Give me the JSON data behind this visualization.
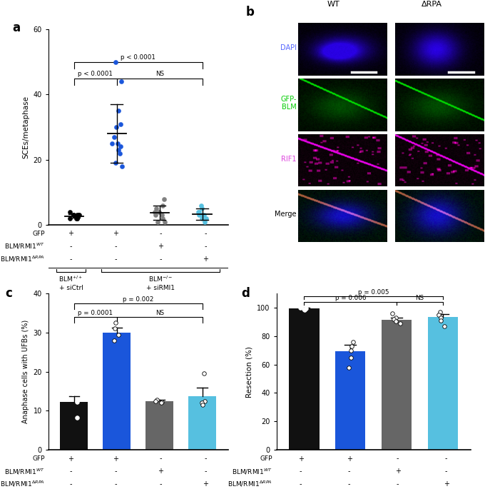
{
  "panel_a": {
    "label": "a",
    "ylabel": "SCEs/metaphase",
    "ylim": [
      0,
      60
    ],
    "yticks": [
      0,
      20,
      40,
      60
    ],
    "colors": [
      "black",
      "#1a56db",
      "#808080",
      "#56c0e0"
    ],
    "data": [
      [
        2,
        3,
        3,
        2,
        2,
        3,
        2,
        3,
        4,
        3
      ],
      [
        50,
        44,
        35,
        31,
        30,
        27,
        25,
        25,
        24,
        23,
        22,
        19,
        18
      ],
      [
        8,
        6,
        5,
        4,
        4,
        3,
        3,
        2,
        1,
        1
      ],
      [
        6,
        5,
        4,
        4,
        3,
        3,
        3,
        2,
        2,
        1
      ]
    ],
    "means": [
      2.7,
      28.0,
      3.8,
      3.3
    ],
    "errors": [
      0.5,
      9.0,
      2.2,
      1.8
    ],
    "table_values": [
      [
        "+",
        "+",
        "-",
        "-"
      ],
      [
        "-",
        "-",
        "+",
        "-"
      ],
      [
        "-",
        "-",
        "-",
        "+"
      ]
    ]
  },
  "panel_b": {
    "label": "b",
    "col_labels": [
      "WT",
      "ΔRPA"
    ],
    "row_labels": [
      "DAPI",
      "GFP-\nBLM",
      "RIF1",
      "Merge"
    ],
    "row_label_colors": [
      "#5566ff",
      "#00cc00",
      "#dd44dd",
      "black"
    ]
  },
  "panel_c": {
    "label": "c",
    "ylabel": "Anaphase cells with UFBs (%)",
    "ylim": [
      0,
      40
    ],
    "yticks": [
      0,
      10,
      20,
      30,
      40
    ],
    "bar_values": [
      12.3,
      30.0,
      12.5,
      13.8
    ],
    "bar_colors": [
      "#111111",
      "#1a56db",
      "#666666",
      "#56c0e0"
    ],
    "data_points": [
      [
        14.5,
        12.3,
        8.2
      ],
      [
        32.5,
        31.0,
        29.5,
        28.0
      ],
      [
        12.8,
        12.5,
        12.2,
        12.0
      ],
      [
        19.5,
        12.5,
        12.0,
        11.5
      ]
    ],
    "errors": [
      1.5,
      1.2,
      0.3,
      2.2
    ],
    "table_values": [
      [
        "+",
        "+",
        "-",
        "-"
      ],
      [
        "-",
        "-",
        "+",
        "-"
      ],
      [
        "-",
        "-",
        "-",
        "+"
      ]
    ]
  },
  "panel_d": {
    "label": "d",
    "ylabel": "Resection (%)",
    "ylim": [
      0,
      110
    ],
    "yticks": [
      0,
      20,
      40,
      60,
      80,
      100
    ],
    "bar_values": [
      99.5,
      69.5,
      91.5,
      93.5
    ],
    "bar_colors": [
      "#111111",
      "#1a56db",
      "#666666",
      "#56c0e0"
    ],
    "data_points": [
      [
        100.5,
        100.0,
        99.5,
        99.0,
        98.5
      ],
      [
        76.0,
        73.0,
        70.0,
        65.0,
        58.0
      ],
      [
        96.0,
        93.0,
        92.0,
        90.5,
        89.0
      ],
      [
        97.0,
        95.0,
        93.0,
        91.0,
        87.0
      ]
    ],
    "errors": [
      0.5,
      4.5,
      1.5,
      2.0
    ],
    "table_values": [
      [
        "+",
        "+",
        "-",
        "-"
      ],
      [
        "-",
        "-",
        "+",
        "-"
      ],
      [
        "-",
        "-",
        "-",
        "+"
      ]
    ]
  }
}
